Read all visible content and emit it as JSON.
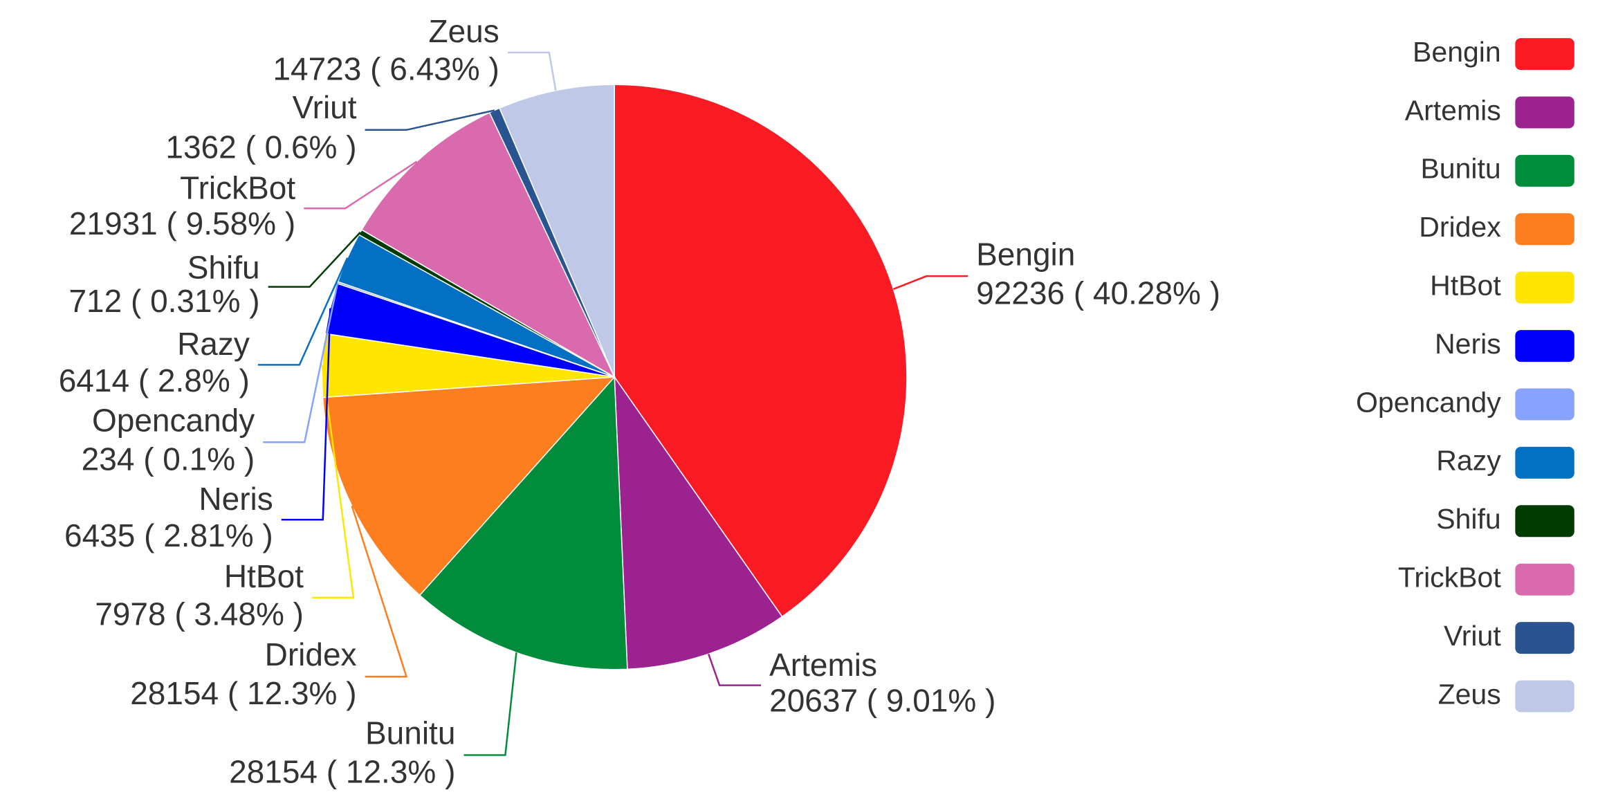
{
  "chart_data": {
    "type": "pie",
    "categories": [
      "Bengin",
      "Artemis",
      "Bunitu",
      "Dridex",
      "HtBot",
      "Neris",
      "Opencandy",
      "Razy",
      "Shifu",
      "TrickBot",
      "Vriut",
      "Zeus"
    ],
    "values": [
      92236,
      20637,
      28154,
      28154,
      7978,
      6435,
      234,
      6414,
      712,
      21931,
      1362,
      14723
    ],
    "value_labels": [
      "92236 ( 40.28% )",
      "20637 ( 9.01% )",
      "28154 ( 12.3% )",
      "28154 ( 12.3% )",
      "7978 ( 3.48% )",
      "6435 ( 2.81% )",
      "234 ( 0.1% )",
      "6414 ( 2.8% )",
      "712 ( 0.31% )",
      "21931 ( 9.58% )",
      "1362 ( 0.6% )",
      "14723 ( 6.43% )"
    ],
    "colors": [
      "#f91a24",
      "#9b228f",
      "#008c3a",
      "#fd7e1e",
      "#ffe600",
      "#0000fa",
      "#87a3fe",
      "#0370c4",
      "#003b04",
      "#da6aae",
      "#2a548f",
      "#bfc9e7"
    ],
    "legend": "right"
  }
}
